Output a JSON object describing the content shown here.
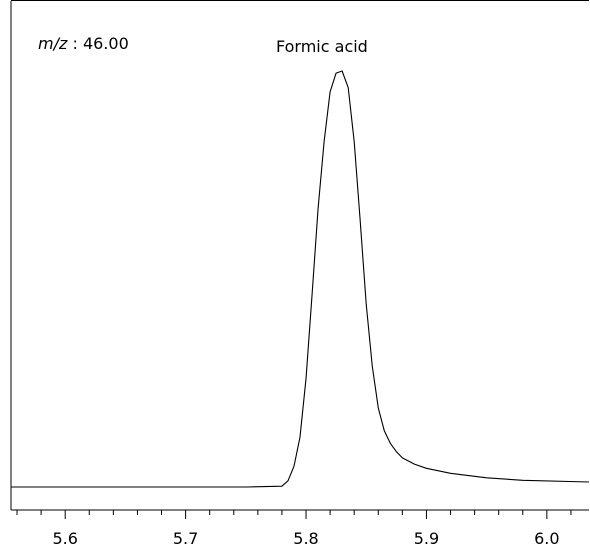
{
  "chart_data": {
    "type": "line",
    "title": "",
    "xlabel": "",
    "ylabel": "",
    "xlim": [
      5.555,
      6.035
    ],
    "ylim": [
      0,
      1.0
    ],
    "x_ticks": [
      5.6,
      5.7,
      5.8,
      5.9,
      6.0
    ],
    "x_tick_labels": [
      "5.6",
      "5.7",
      "5.8",
      "5.9",
      "6.0"
    ],
    "minor_tick_step": 0.02,
    "grid": false,
    "annotations": {
      "mz_label": "m/z",
      "mz_sep": " : ",
      "mz_value": "46.00",
      "peak_label": "Formic acid"
    },
    "series": [
      {
        "values_note": "",
        "x": [
          5.555,
          5.6,
          5.65,
          5.7,
          5.75,
          5.78,
          5.785,
          5.79,
          5.795,
          5.8,
          5.805,
          5.81,
          5.815,
          5.82,
          5.825,
          5.83,
          5.835,
          5.84,
          5.845,
          5.85,
          5.855,
          5.86,
          5.865,
          5.87,
          5.875,
          5.88,
          5.89,
          5.9,
          5.92,
          5.95,
          5.98,
          6.035
        ],
        "y": [
          0.0,
          0.0,
          0.0,
          0.0,
          0.0,
          0.002,
          0.015,
          0.05,
          0.12,
          0.26,
          0.46,
          0.67,
          0.83,
          0.95,
          0.995,
          1.0,
          0.96,
          0.83,
          0.64,
          0.44,
          0.29,
          0.19,
          0.135,
          0.105,
          0.085,
          0.07,
          0.055,
          0.045,
          0.033,
          0.022,
          0.016,
          0.012
        ]
      }
    ]
  }
}
